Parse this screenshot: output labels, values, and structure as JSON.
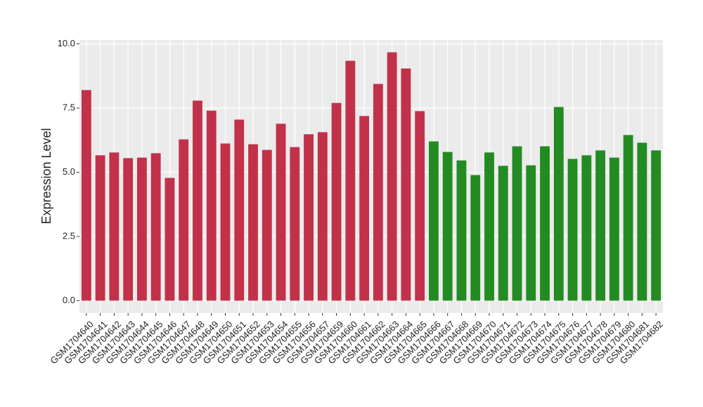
{
  "chart_data": {
    "type": "bar",
    "y_label": "Expression Level",
    "categories": [
      "GSM1704640",
      "GSM1704641",
      "GSM1704642",
      "GSM1704643",
      "GSM1704644",
      "GSM1704645",
      "GSM1704646",
      "GSM1704647",
      "GSM1704648",
      "GSM1704649",
      "GSM1704650",
      "GSM1704651",
      "GSM1704652",
      "GSM1704653",
      "GSM1704654",
      "GSM1704655",
      "GSM1704656",
      "GSM1704657",
      "GSM1704659",
      "GSM1704660",
      "GSM1704661",
      "GSM1704662",
      "GSM1704663",
      "GSM1704664",
      "GSM1704665",
      "GSM1704666",
      "GSM1704667",
      "GSM1704668",
      "GSM1704669",
      "GSM1704670",
      "GSM1704671",
      "GSM1704672",
      "GSM1704673",
      "GSM1704674",
      "GSM1704675",
      "GSM1704676",
      "GSM1704677",
      "GSM1704678",
      "GSM1704679",
      "GSM1704680",
      "GSM1704681",
      "GSM1704682"
    ],
    "values": [
      8.2,
      5.66,
      5.77,
      5.55,
      5.57,
      5.74,
      4.78,
      6.28,
      7.79,
      7.4,
      6.12,
      7.05,
      6.09,
      5.87,
      6.89,
      5.98,
      6.48,
      6.56,
      7.7,
      9.34,
      7.19,
      8.44,
      9.67,
      9.04,
      7.38,
      6.2,
      5.79,
      5.46,
      4.89,
      5.77,
      5.25,
      6.01,
      5.27,
      6.01,
      7.54,
      5.52,
      5.66,
      5.85,
      5.57,
      6.45,
      6.15,
      5.85
    ],
    "colors": [
      "#c1314a",
      "#c1314a",
      "#c1314a",
      "#c1314a",
      "#c1314a",
      "#c1314a",
      "#c1314a",
      "#c1314a",
      "#c1314a",
      "#c1314a",
      "#c1314a",
      "#c1314a",
      "#c1314a",
      "#c1314a",
      "#c1314a",
      "#c1314a",
      "#c1314a",
      "#c1314a",
      "#c1314a",
      "#c1314a",
      "#c1314a",
      "#c1314a",
      "#c1314a",
      "#c1314a",
      "#c1314a",
      "#228b22",
      "#228b22",
      "#228b22",
      "#228b22",
      "#228b22",
      "#228b22",
      "#228b22",
      "#228b22",
      "#228b22",
      "#228b22",
      "#228b22",
      "#228b22",
      "#228b22",
      "#228b22",
      "#228b22",
      "#228b22",
      "#228b22"
    ],
    "ylim": [
      -0.48,
      10.15
    ],
    "yticks": [
      {
        "value": 0,
        "label": "0.0"
      },
      {
        "value": 2.5,
        "label": "2.5"
      },
      {
        "value": 5,
        "label": "5.0"
      },
      {
        "value": 7.5,
        "label": "7.5"
      },
      {
        "value": 10,
        "label": "10.0"
      }
    ],
    "grid": true
  }
}
